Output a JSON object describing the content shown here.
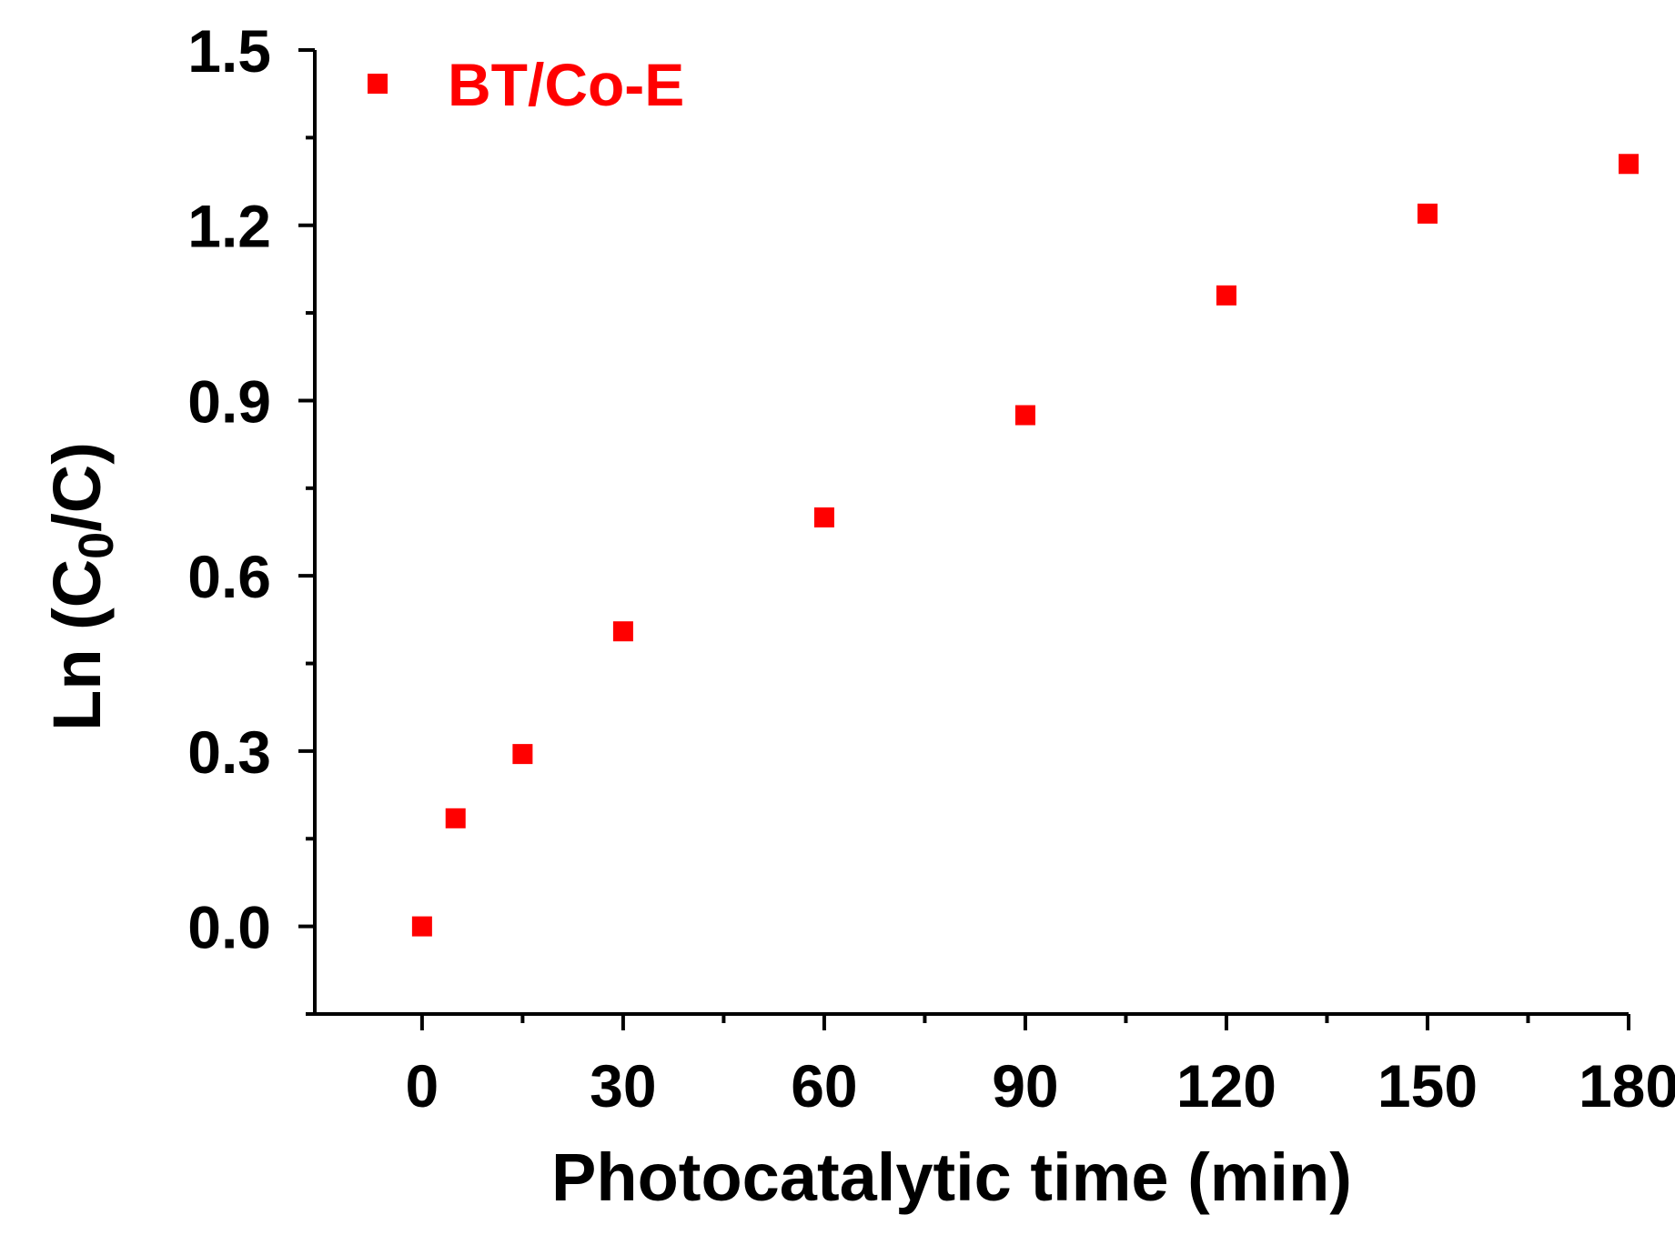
{
  "chart_data": {
    "type": "scatter",
    "xlabel": "Photocatalytic time (min)",
    "ylabel_prefix": "Ln (C",
    "ylabel_sub": "0",
    "ylabel_suffix": "/C)",
    "xlim": [
      -16,
      180
    ],
    "ylim": [
      -0.15,
      1.5
    ],
    "xticks": [
      0,
      30,
      60,
      90,
      120,
      150,
      180
    ],
    "xtick_labels": [
      "0",
      "30",
      "60",
      "90",
      "120",
      "150",
      "180"
    ],
    "yticks": [
      0.0,
      0.3,
      0.6,
      0.9,
      1.2,
      1.5
    ],
    "ytick_labels": [
      "0.0",
      "0.3",
      "0.6",
      "0.9",
      "1.2",
      "1.5"
    ],
    "legend_position": "top-left",
    "grid": false,
    "series": [
      {
        "name": "BT/Co-E",
        "color": "#ff0000",
        "marker": "square",
        "x": [
          0,
          5,
          15,
          30,
          60,
          90,
          120,
          150,
          180
        ],
        "y": [
          0.0,
          0.185,
          0.295,
          0.505,
          0.7,
          0.875,
          1.08,
          1.22,
          1.305
        ]
      }
    ]
  }
}
